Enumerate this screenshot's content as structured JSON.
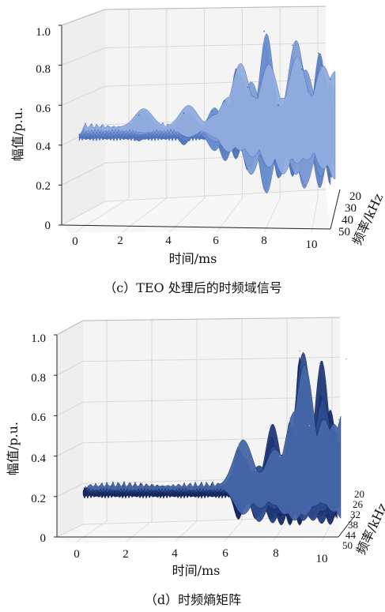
{
  "chart_data": [
    {
      "type": "surface",
      "caption": "（c）TEO 处理后的时频域信号",
      "xlabel": "时间/ms",
      "ylabel": "幅值/p.u.",
      "zlabel": "频率/kHz",
      "x_ticks": [
        "0",
        "2",
        "4",
        "6",
        "8",
        "10"
      ],
      "y_ticks": [
        "0",
        "0.2",
        "0.4",
        "0.6",
        "0.8",
        "1.0"
      ],
      "z_ticks": [
        "20",
        "30",
        "40",
        "50"
      ],
      "xlim": [
        0,
        10
      ],
      "ylim": [
        0,
        1.0
      ],
      "baseline": 0.45,
      "peaks": [
        {
          "x": 2.7,
          "max": 0.55,
          "min": 0.42
        },
        {
          "x": 4.6,
          "max": 0.56,
          "min": 0.4
        },
        {
          "x": 5.8,
          "max": 0.57,
          "min": 0.35
        },
        {
          "x": 6.3,
          "max": 0.62,
          "min": 0.31
        },
        {
          "x": 6.8,
          "max": 0.78,
          "min": 0.33
        },
        {
          "x": 7.3,
          "max": 0.69,
          "min": 0.22
        },
        {
          "x": 8.0,
          "max": 0.97,
          "min": 0.12
        },
        {
          "x": 8.6,
          "max": 0.6,
          "min": 0.21
        },
        {
          "x": 9.2,
          "max": 0.9,
          "min": 0.22
        },
        {
          "x": 9.6,
          "max": 0.78,
          "min": 0.14
        },
        {
          "x": 10.3,
          "max": 0.86,
          "min": 0.17
        },
        {
          "x": 10.8,
          "max": 0.73,
          "min": 0.19
        }
      ],
      "color": "#6688c8"
    },
    {
      "type": "surface",
      "caption": "（d）时频熵矩阵",
      "xlabel": "时间/ms",
      "ylabel": "幅值/p.u.",
      "zlabel": "频率/kHz",
      "x_ticks": [
        "0",
        "2",
        "4",
        "6",
        "8",
        "10"
      ],
      "y_ticks": [
        "0",
        "0.2",
        "0.4",
        "0.6",
        "0.8",
        "1.0"
      ],
      "z_ticks": [
        "20",
        "26",
        "32",
        "38",
        "44",
        "50"
      ],
      "xlim": [
        0,
        10
      ],
      "ylim": [
        0,
        1.0
      ],
      "baseline": 0.22,
      "peaks": [
        {
          "x": 6.6,
          "max": 0.45,
          "min": 0.08
        },
        {
          "x": 7.3,
          "max": 0.33,
          "min": 0.05
        },
        {
          "x": 7.9,
          "max": 0.55,
          "min": 0.05
        },
        {
          "x": 8.3,
          "max": 0.4,
          "min": 0.05
        },
        {
          "x": 8.7,
          "max": 0.59,
          "min": 0.05
        },
        {
          "x": 9.1,
          "max": 0.92,
          "min": 0.05
        },
        {
          "x": 9.5,
          "max": 0.55,
          "min": 0.05
        },
        {
          "x": 9.9,
          "max": 0.86,
          "min": 0.05
        },
        {
          "x": 10.3,
          "max": 0.63,
          "min": 0.05
        },
        {
          "x": 10.7,
          "max": 0.58,
          "min": 0.05
        },
        {
          "x": 11.0,
          "max": 0.88,
          "min": 0.05
        }
      ],
      "color": "#1c2f6a"
    }
  ]
}
